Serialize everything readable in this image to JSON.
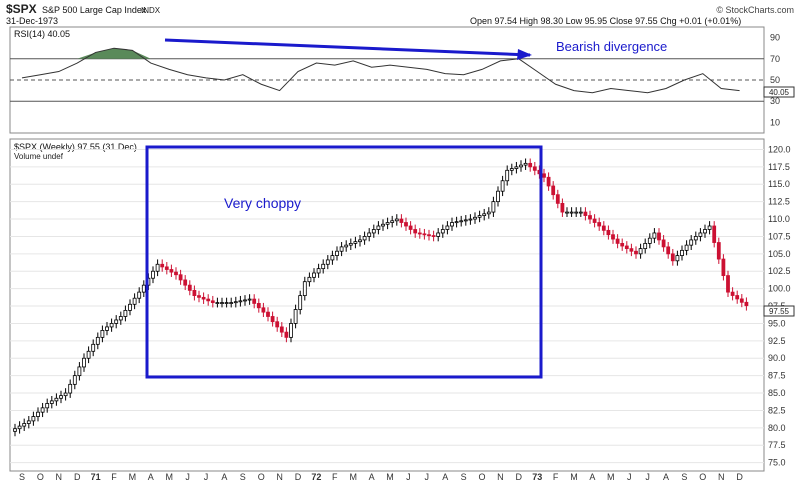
{
  "header": {
    "symbol": "$SPX",
    "name": "S&P 500 Large Cap Index",
    "exchange": "INDX",
    "date": "31-Dec-1973",
    "ohlc": "Open 97.54  High 98.30  Low 95.95  Close 97.55  Chg +0.01 (+0.01%)",
    "brand": "© StockCharts.com"
  },
  "rsi_panel": {
    "legend": "RSI(14) 40.05",
    "ticks": [
      "90",
      "70",
      "50",
      "30",
      "10"
    ],
    "value_badge": "40.05",
    "annotation": "Bearish divergence"
  },
  "price_panel": {
    "legend": "$SPX (Weekly) 97.55 (31 Dec)",
    "legend2": "Volume undef",
    "price_badge": "97.55",
    "annotation": "Very choppy",
    "ticks": [
      "120.0",
      "117.5",
      "115.0",
      "112.5",
      "110.0",
      "107.5",
      "105.0",
      "102.5",
      "100.0",
      "97.5",
      "95.0",
      "92.5",
      "90.0",
      "87.5",
      "85.0",
      "82.5",
      "80.0",
      "77.5",
      "75.0"
    ]
  },
  "x_axis": {
    "labels": [
      "S",
      "O",
      "N",
      "D",
      "71",
      "F",
      "M",
      "A",
      "M",
      "J",
      "J",
      "A",
      "S",
      "O",
      "N",
      "D",
      "72",
      "F",
      "M",
      "A",
      "M",
      "J",
      "J",
      "A",
      "S",
      "O",
      "N",
      "D",
      "73",
      "F",
      "M",
      "A",
      "M",
      "J",
      "J",
      "A",
      "S",
      "O",
      "N",
      "D"
    ]
  },
  "colors": {
    "up": "#000000",
    "down": "#cc1133",
    "annotation": "#1a1acc",
    "rsi_fill": "#5a8a5a"
  },
  "chart_data": [
    {
      "type": "line",
      "title": "RSI(14) 40.05",
      "ylim": [
        0,
        100
      ],
      "guide_levels": [
        70,
        50,
        30
      ],
      "x": [
        "1970-09",
        "1970-10",
        "1970-11",
        "1970-12",
        "1971-01",
        "1971-02",
        "1971-03",
        "1971-04",
        "1971-05",
        "1971-06",
        "1971-07",
        "1971-08",
        "1971-09",
        "1971-10",
        "1971-11",
        "1971-12",
        "1972-01",
        "1972-02",
        "1972-03",
        "1972-04",
        "1972-05",
        "1972-06",
        "1972-07",
        "1972-08",
        "1972-09",
        "1972-10",
        "1972-11",
        "1972-12",
        "1973-01",
        "1973-02",
        "1973-03",
        "1973-04",
        "1973-05",
        "1973-06",
        "1973-07",
        "1973-08",
        "1973-09",
        "1973-10",
        "1973-11",
        "1973-12"
      ],
      "series": [
        {
          "name": "RSI(14)",
          "values": [
            52,
            55,
            58,
            66,
            76,
            80,
            78,
            66,
            60,
            55,
            52,
            50,
            55,
            46,
            40,
            58,
            66,
            64,
            68,
            62,
            64,
            62,
            60,
            56,
            55,
            60,
            68,
            70,
            58,
            46,
            40,
            38,
            42,
            40,
            38,
            42,
            50,
            56,
            42,
            40
          ]
        }
      ]
    },
    {
      "type": "bar",
      "title": "$SPX (Weekly) 97.55 (31 Dec)",
      "ylim": [
        73.8,
        121.5
      ],
      "x": [
        "1970-09",
        "1970-10",
        "1970-11",
        "1970-12",
        "1971-01",
        "1971-02",
        "1971-03",
        "1971-04",
        "1971-05",
        "1971-06",
        "1971-07",
        "1971-08",
        "1971-09",
        "1971-10",
        "1971-11",
        "1971-12",
        "1972-01",
        "1972-02",
        "1972-03",
        "1972-04",
        "1972-05",
        "1972-06",
        "1972-07",
        "1972-08",
        "1972-09",
        "1972-10",
        "1972-11",
        "1972-12",
        "1973-01",
        "1973-02",
        "1973-03",
        "1973-04",
        "1973-05",
        "1973-06",
        "1973-07",
        "1973-08",
        "1973-09",
        "1973-10",
        "1973-11",
        "1973-12"
      ],
      "series": [
        {
          "name": "$SPX",
          "values": [
            81,
            83.5,
            85,
            90,
            94,
            96,
            99.5,
            103.5,
            102,
            99,
            98,
            98,
            98.5,
            96,
            93,
            101,
            103.5,
            106,
            107,
            109,
            110,
            108,
            107.5,
            109.5,
            110,
            111,
            117,
            118,
            116,
            111,
            111,
            109,
            106.5,
            105,
            108,
            104,
            107,
            109,
            99.5,
            97.55
          ]
        }
      ]
    }
  ]
}
